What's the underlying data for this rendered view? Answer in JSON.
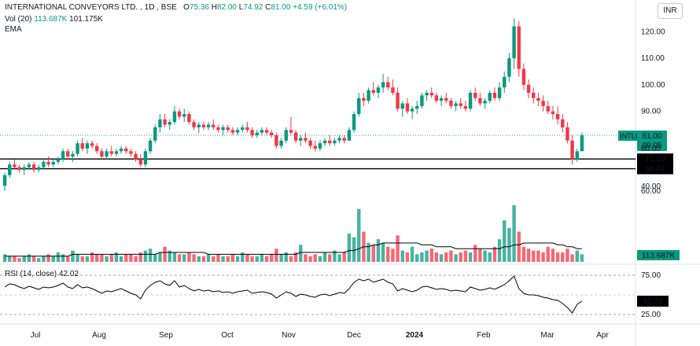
{
  "legend": {
    "name": "INTERNATIONAL CONVEYORS LTD.",
    "interval": "1D",
    "exchange": "BSE",
    "open_label": "O",
    "open": "75.36",
    "high_label": "H",
    "high": "82.00",
    "low_label": "L",
    "low": "74.92",
    "close_label": "C",
    "close": "81.00",
    "change": "+4.59 (+6.01%)",
    "vol_label": "Vol (20)",
    "vol_value": "113.687K",
    "vol_ma": "101.175K",
    "ema_label": "EMA"
  },
  "currency": "INR",
  "rsi_legend": "RSI (14, close) 42.02",
  "colors": {
    "up": "#089981",
    "down": "#f23645",
    "price_tag": "#089981",
    "line": "#000000"
  },
  "chart_data": {
    "type": "candlestick",
    "symbol": "INTLCONV",
    "price_axis": {
      "ticks": [
        60,
        70,
        80,
        90,
        100,
        110,
        120
      ],
      "min": 60,
      "max": 126
    },
    "x_labels": [
      "Jul",
      "Aug",
      "Sep",
      "Oct",
      "Nov",
      "Dec",
      "2024",
      "Feb",
      "Mar",
      "Apr"
    ],
    "horizontal_lines": [
      {
        "value": 72.08,
        "label": "72.08"
      },
      {
        "value": 68.41,
        "label": "68.41"
      }
    ],
    "last_price": {
      "value": 81.0,
      "label": "81.00",
      "countdown": "09:05",
      "name": "INTLCONV"
    },
    "candles": [
      [
        62,
        67,
        60,
        66
      ],
      [
        66,
        71,
        65,
        70
      ],
      [
        70,
        72,
        68,
        69
      ],
      [
        69,
        70,
        67,
        68
      ],
      [
        68,
        70,
        66,
        69
      ],
      [
        69,
        71,
        68,
        70
      ],
      [
        70,
        71,
        67,
        68
      ],
      [
        68,
        70,
        67,
        69
      ],
      [
        69,
        72,
        68,
        71
      ],
      [
        71,
        73,
        69,
        70
      ],
      [
        70,
        72,
        69,
        71
      ],
      [
        71,
        73,
        70,
        72
      ],
      [
        72,
        76,
        71,
        75
      ],
      [
        75,
        76,
        72,
        73
      ],
      [
        73,
        75,
        71,
        74
      ],
      [
        74,
        79,
        73,
        78
      ],
      [
        78,
        80,
        75,
        76
      ],
      [
        76,
        79,
        74,
        78
      ],
      [
        78,
        79,
        76,
        77
      ],
      [
        77,
        78,
        74,
        75
      ],
      [
        75,
        76,
        72,
        73
      ],
      [
        73,
        76,
        72,
        75
      ],
      [
        75,
        77,
        73,
        74
      ],
      [
        74,
        76,
        73,
        75
      ],
      [
        75,
        77,
        74,
        76
      ],
      [
        76,
        77,
        74,
        75
      ],
      [
        75,
        76,
        73,
        74
      ],
      [
        74,
        75,
        71,
        72
      ],
      [
        72,
        74,
        69,
        70
      ],
      [
        70,
        76,
        69,
        75
      ],
      [
        75,
        80,
        74,
        79
      ],
      [
        79,
        85,
        78,
        84
      ],
      [
        84,
        89,
        82,
        87
      ],
      [
        87,
        89,
        84,
        85
      ],
      [
        85,
        87,
        83,
        86
      ],
      [
        86,
        92,
        85,
        90
      ],
      [
        90,
        91,
        87,
        88
      ],
      [
        88,
        91,
        86,
        89
      ],
      [
        89,
        90,
        85,
        86
      ],
      [
        86,
        87,
        83,
        84
      ],
      [
        84,
        86,
        82,
        85
      ],
      [
        85,
        86,
        83,
        84
      ],
      [
        84,
        86,
        83,
        85
      ],
      [
        85,
        87,
        83,
        84
      ],
      [
        84,
        85,
        82,
        83
      ],
      [
        83,
        85,
        81,
        84
      ],
      [
        84,
        85,
        82,
        83
      ],
      [
        83,
        84,
        81,
        82
      ],
      [
        82,
        84,
        81,
        83
      ],
      [
        83,
        85,
        82,
        84
      ],
      [
        84,
        86,
        82,
        83
      ],
      [
        83,
        84,
        80,
        81
      ],
      [
        81,
        83,
        80,
        82
      ],
      [
        82,
        84,
        81,
        83
      ],
      [
        83,
        84,
        81,
        82
      ],
      [
        82,
        83,
        80,
        81
      ],
      [
        81,
        82,
        76,
        77
      ],
      [
        77,
        80,
        76,
        79
      ],
      [
        79,
        84,
        78,
        83
      ],
      [
        83,
        88,
        81,
        82
      ],
      [
        82,
        83,
        78,
        79
      ],
      [
        79,
        81,
        77,
        80
      ],
      [
        80,
        82,
        78,
        79
      ],
      [
        79,
        80,
        76,
        77
      ],
      [
        77,
        79,
        75,
        76
      ],
      [
        76,
        79,
        75,
        78
      ],
      [
        78,
        80,
        77,
        79
      ],
      [
        79,
        81,
        77,
        78
      ],
      [
        78,
        80,
        77,
        79
      ],
      [
        79,
        81,
        78,
        80
      ],
      [
        80,
        81,
        78,
        79
      ],
      [
        79,
        84,
        79,
        83
      ],
      [
        83,
        90,
        82,
        89
      ],
      [
        89,
        97,
        88,
        95
      ],
      [
        95,
        97,
        92,
        94
      ],
      [
        94,
        99,
        93,
        98
      ],
      [
        98,
        101,
        96,
        97
      ],
      [
        97,
        100,
        95,
        99
      ],
      [
        99,
        104,
        97,
        101
      ],
      [
        101,
        103,
        98,
        99
      ],
      [
        99,
        102,
        96,
        97
      ],
      [
        97,
        99,
        90,
        91
      ],
      [
        91,
        94,
        88,
        93
      ],
      [
        93,
        95,
        89,
        90
      ],
      [
        90,
        92,
        87,
        91
      ],
      [
        91,
        94,
        89,
        92
      ],
      [
        92,
        97,
        91,
        96
      ],
      [
        96,
        98,
        94,
        97
      ],
      [
        97,
        99,
        95,
        96
      ],
      [
        96,
        97,
        93,
        94
      ],
      [
        94,
        96,
        92,
        95
      ],
      [
        95,
        97,
        93,
        94
      ],
      [
        94,
        95,
        91,
        92
      ],
      [
        92,
        94,
        90,
        93
      ],
      [
        93,
        95,
        91,
        92
      ],
      [
        92,
        94,
        90,
        91
      ],
      [
        91,
        98,
        90,
        97
      ],
      [
        97,
        99,
        94,
        95
      ],
      [
        95,
        97,
        92,
        93
      ],
      [
        93,
        95,
        91,
        94
      ],
      [
        94,
        98,
        93,
        97
      ],
      [
        97,
        99,
        94,
        95
      ],
      [
        95,
        101,
        94,
        99
      ],
      [
        99,
        105,
        97,
        103
      ],
      [
        103,
        112,
        101,
        110
      ],
      [
        110,
        125,
        106,
        122
      ],
      [
        122,
        124,
        103,
        106
      ],
      [
        106,
        108,
        98,
        100
      ],
      [
        100,
        102,
        95,
        97
      ],
      [
        97,
        99,
        93,
        95
      ],
      [
        95,
        97,
        92,
        94
      ],
      [
        94,
        96,
        90,
        92
      ],
      [
        92,
        94,
        89,
        90
      ],
      [
        90,
        92,
        87,
        89
      ],
      [
        89,
        92,
        85,
        87
      ],
      [
        87,
        89,
        82,
        84
      ],
      [
        84,
        86,
        78,
        79
      ],
      [
        79,
        81,
        70,
        72
      ],
      [
        72,
        76,
        71,
        75
      ],
      [
        75,
        82,
        75,
        81
      ]
    ],
    "volume_axis": {
      "ticks": [
        40,
        60
      ]
    },
    "volume": [
      4,
      3,
      3,
      2,
      3,
      4,
      3,
      2,
      3,
      4,
      3,
      5,
      4,
      3,
      6,
      4,
      3,
      3,
      5,
      4,
      4,
      3,
      4,
      5,
      3,
      4,
      4,
      3,
      5,
      6,
      7,
      4,
      5,
      8,
      6,
      5,
      4,
      4,
      5,
      4,
      3,
      3,
      4,
      3,
      4,
      3,
      3,
      4,
      3,
      5,
      4,
      3,
      3,
      4,
      3,
      4,
      7,
      4,
      5,
      3,
      5,
      9,
      4,
      3,
      4,
      3,
      5,
      4,
      6,
      4,
      5,
      15,
      13,
      28,
      16,
      10,
      9,
      12,
      10,
      8,
      7,
      14,
      6,
      5,
      8,
      4,
      5,
      6,
      7,
      5,
      4,
      5,
      6,
      4,
      5,
      6,
      5,
      9,
      7,
      6,
      5,
      8,
      12,
      22,
      18,
      30,
      16,
      8,
      7,
      6,
      6,
      5,
      8,
      7,
      5,
      5,
      7,
      4,
      6,
      4
    ],
    "volume_ma": [
      3,
      3,
      3,
      3,
      3,
      3,
      3,
      3,
      3,
      3,
      3,
      3,
      3,
      3,
      4,
      4,
      4,
      4,
      4,
      4,
      4,
      4,
      4,
      4,
      4,
      4,
      4,
      4,
      4,
      4,
      4,
      4,
      5,
      5,
      5,
      5,
      5,
      5,
      5,
      5,
      5,
      5,
      4,
      4,
      4,
      4,
      4,
      4,
      4,
      4,
      4,
      4,
      4,
      4,
      4,
      4,
      4,
      4,
      4,
      4,
      4,
      5,
      5,
      5,
      5,
      5,
      5,
      5,
      5,
      5,
      5,
      6,
      6,
      7,
      8,
      8,
      9,
      9,
      10,
      10,
      10,
      10,
      10,
      10,
      10,
      10,
      9,
      9,
      9,
      8,
      8,
      8,
      8,
      7,
      7,
      7,
      7,
      7,
      7,
      7,
      7,
      7,
      7,
      8,
      8,
      9,
      9,
      10,
      10,
      10,
      10,
      10,
      10,
      10,
      9,
      9,
      8,
      8,
      7,
      7
    ],
    "rsi": {
      "label": "RSI (14, close)",
      "value": 42.02,
      "levels": [
        25.0,
        42.84,
        45.13,
        75.0
      ],
      "level_labels": [
        "25.00",
        "42.84",
        "45.13",
        "75.00"
      ],
      "values": [
        60,
        64,
        63,
        60,
        58,
        61,
        59,
        57,
        60,
        59,
        60,
        62,
        65,
        60,
        58,
        63,
        59,
        60,
        58,
        55,
        52,
        55,
        54,
        56,
        58,
        55,
        52,
        50,
        45,
        56,
        62,
        66,
        68,
        64,
        62,
        68,
        60,
        62,
        58,
        55,
        57,
        55,
        56,
        54,
        55,
        53,
        54,
        52,
        54,
        55,
        56,
        52,
        53,
        54,
        53,
        51,
        46,
        50,
        54,
        52,
        48,
        51,
        50,
        48,
        47,
        50,
        51,
        49,
        51,
        53,
        52,
        58,
        66,
        70,
        68,
        70,
        66,
        68,
        70,
        66,
        64,
        55,
        58,
        56,
        54,
        56,
        60,
        61,
        59,
        57,
        58,
        57,
        55,
        56,
        55,
        54,
        60,
        58,
        56,
        57,
        59,
        57,
        60,
        63,
        68,
        74,
        58,
        52,
        50,
        50,
        49,
        47,
        46,
        44,
        43,
        39,
        34,
        27,
        38,
        42
      ]
    }
  }
}
